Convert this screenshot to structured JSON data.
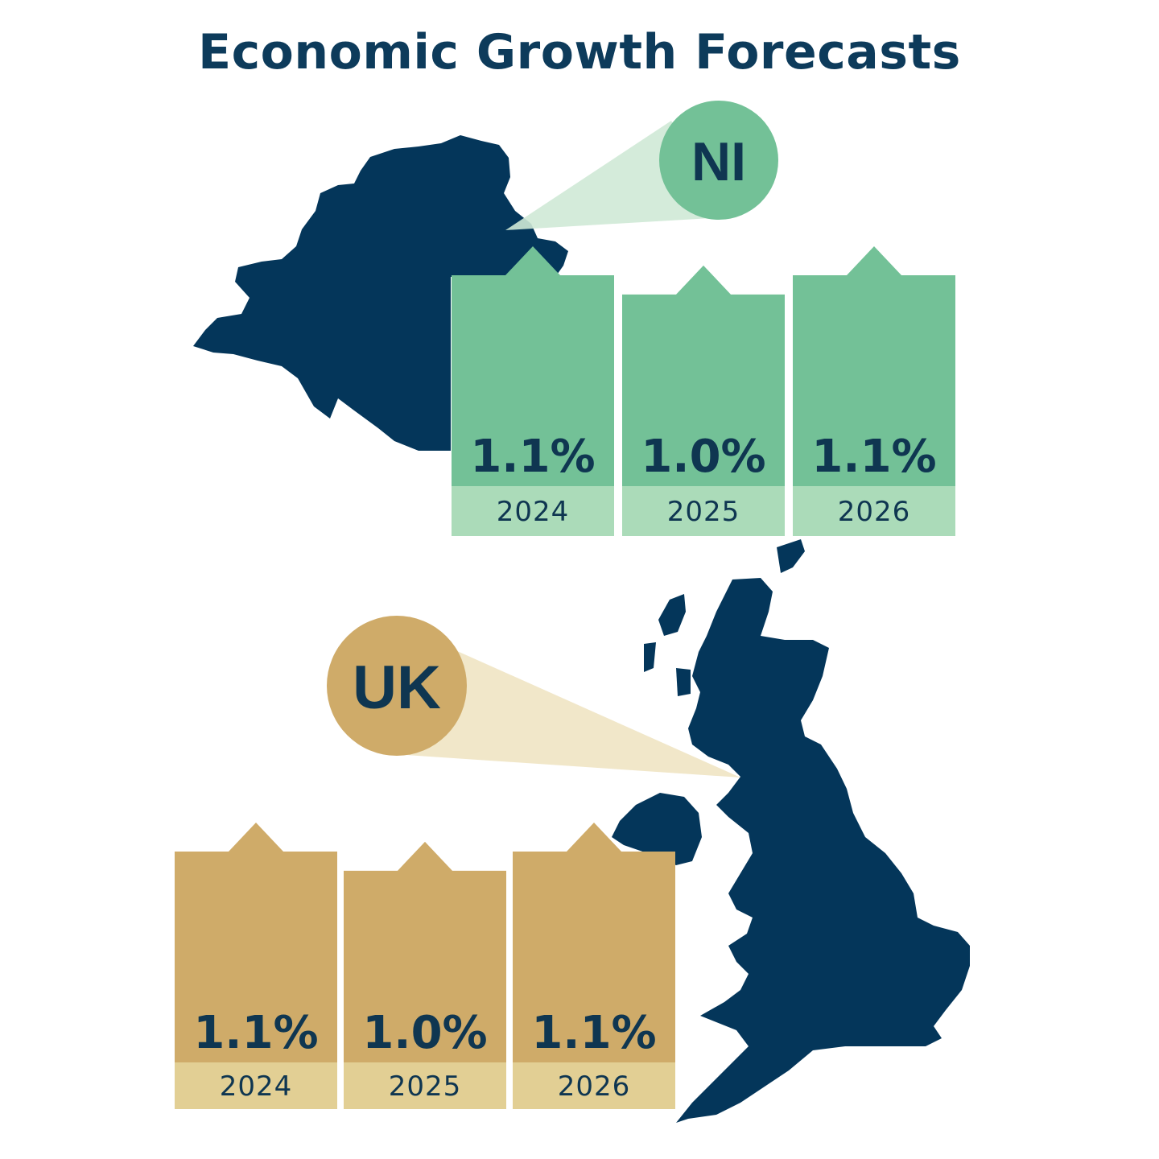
{
  "title": "Economic Growth Forecasts",
  "colors": {
    "navy": "#04365a",
    "ni_bar": "#73c197",
    "ni_label_bg": "#abdbb9",
    "ni_callout": "#cfe9d6",
    "uk_bar": "#cfab69",
    "uk_label_bg": "#e2cf94",
    "uk_callout": "#eee3c0",
    "value_text": "#0f3651"
  },
  "chart_data": [
    {
      "type": "bar",
      "region": "NI",
      "badge": "NI",
      "categories": [
        "2024",
        "2025",
        "2026"
      ],
      "values": [
        1.1,
        1.0,
        1.1
      ],
      "value_labels": [
        "1.1%",
        "1.0%",
        "1.1%"
      ]
    },
    {
      "type": "bar",
      "region": "UK",
      "badge": "UK",
      "categories": [
        "2024",
        "2025",
        "2026"
      ],
      "values": [
        1.1,
        1.0,
        1.1
      ],
      "value_labels": [
        "1.1%",
        "1.0%",
        "1.1%"
      ]
    }
  ]
}
